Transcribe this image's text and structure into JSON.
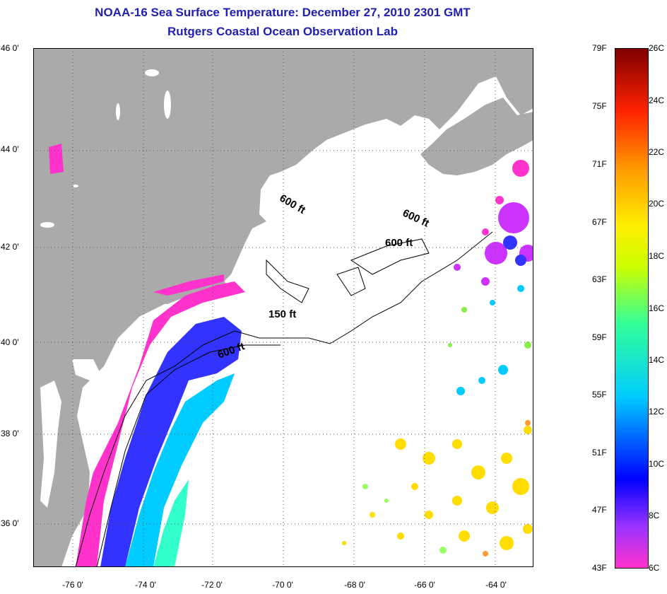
{
  "title": "NOAA-16 Sea Surface Temperature:  December 27, 2010 2301 GMT",
  "subtitle": "Rutgers Coastal Ocean Observation Lab",
  "colors": {
    "title": "#1f1fb0",
    "land": "#aaaaaa",
    "ocean": "#ffffff"
  },
  "lat_labels": [
    "46 0'",
    "44 0'",
    "42 0'",
    "40 0'",
    "38 0'",
    "36 0'"
  ],
  "lon_labels": [
    "-76 0'",
    "-74 0'",
    "-72 0'",
    "-70 0'",
    "-68 0'",
    "-66 0'",
    "-64 0'"
  ],
  "contour_labels": [
    "600 ft",
    "600 ft",
    "600 ft",
    "150 ft",
    "600 ft"
  ],
  "colorbar": {
    "fahrenheit": [
      "79F",
      "75F",
      "71F",
      "67F",
      "63F",
      "59F",
      "55F",
      "51F",
      "47F",
      "43F"
    ],
    "celsius": [
      "26C",
      "24C",
      "22C",
      "20C",
      "18C",
      "16C",
      "14C",
      "12C",
      "10C",
      "8C",
      "6C"
    ]
  }
}
